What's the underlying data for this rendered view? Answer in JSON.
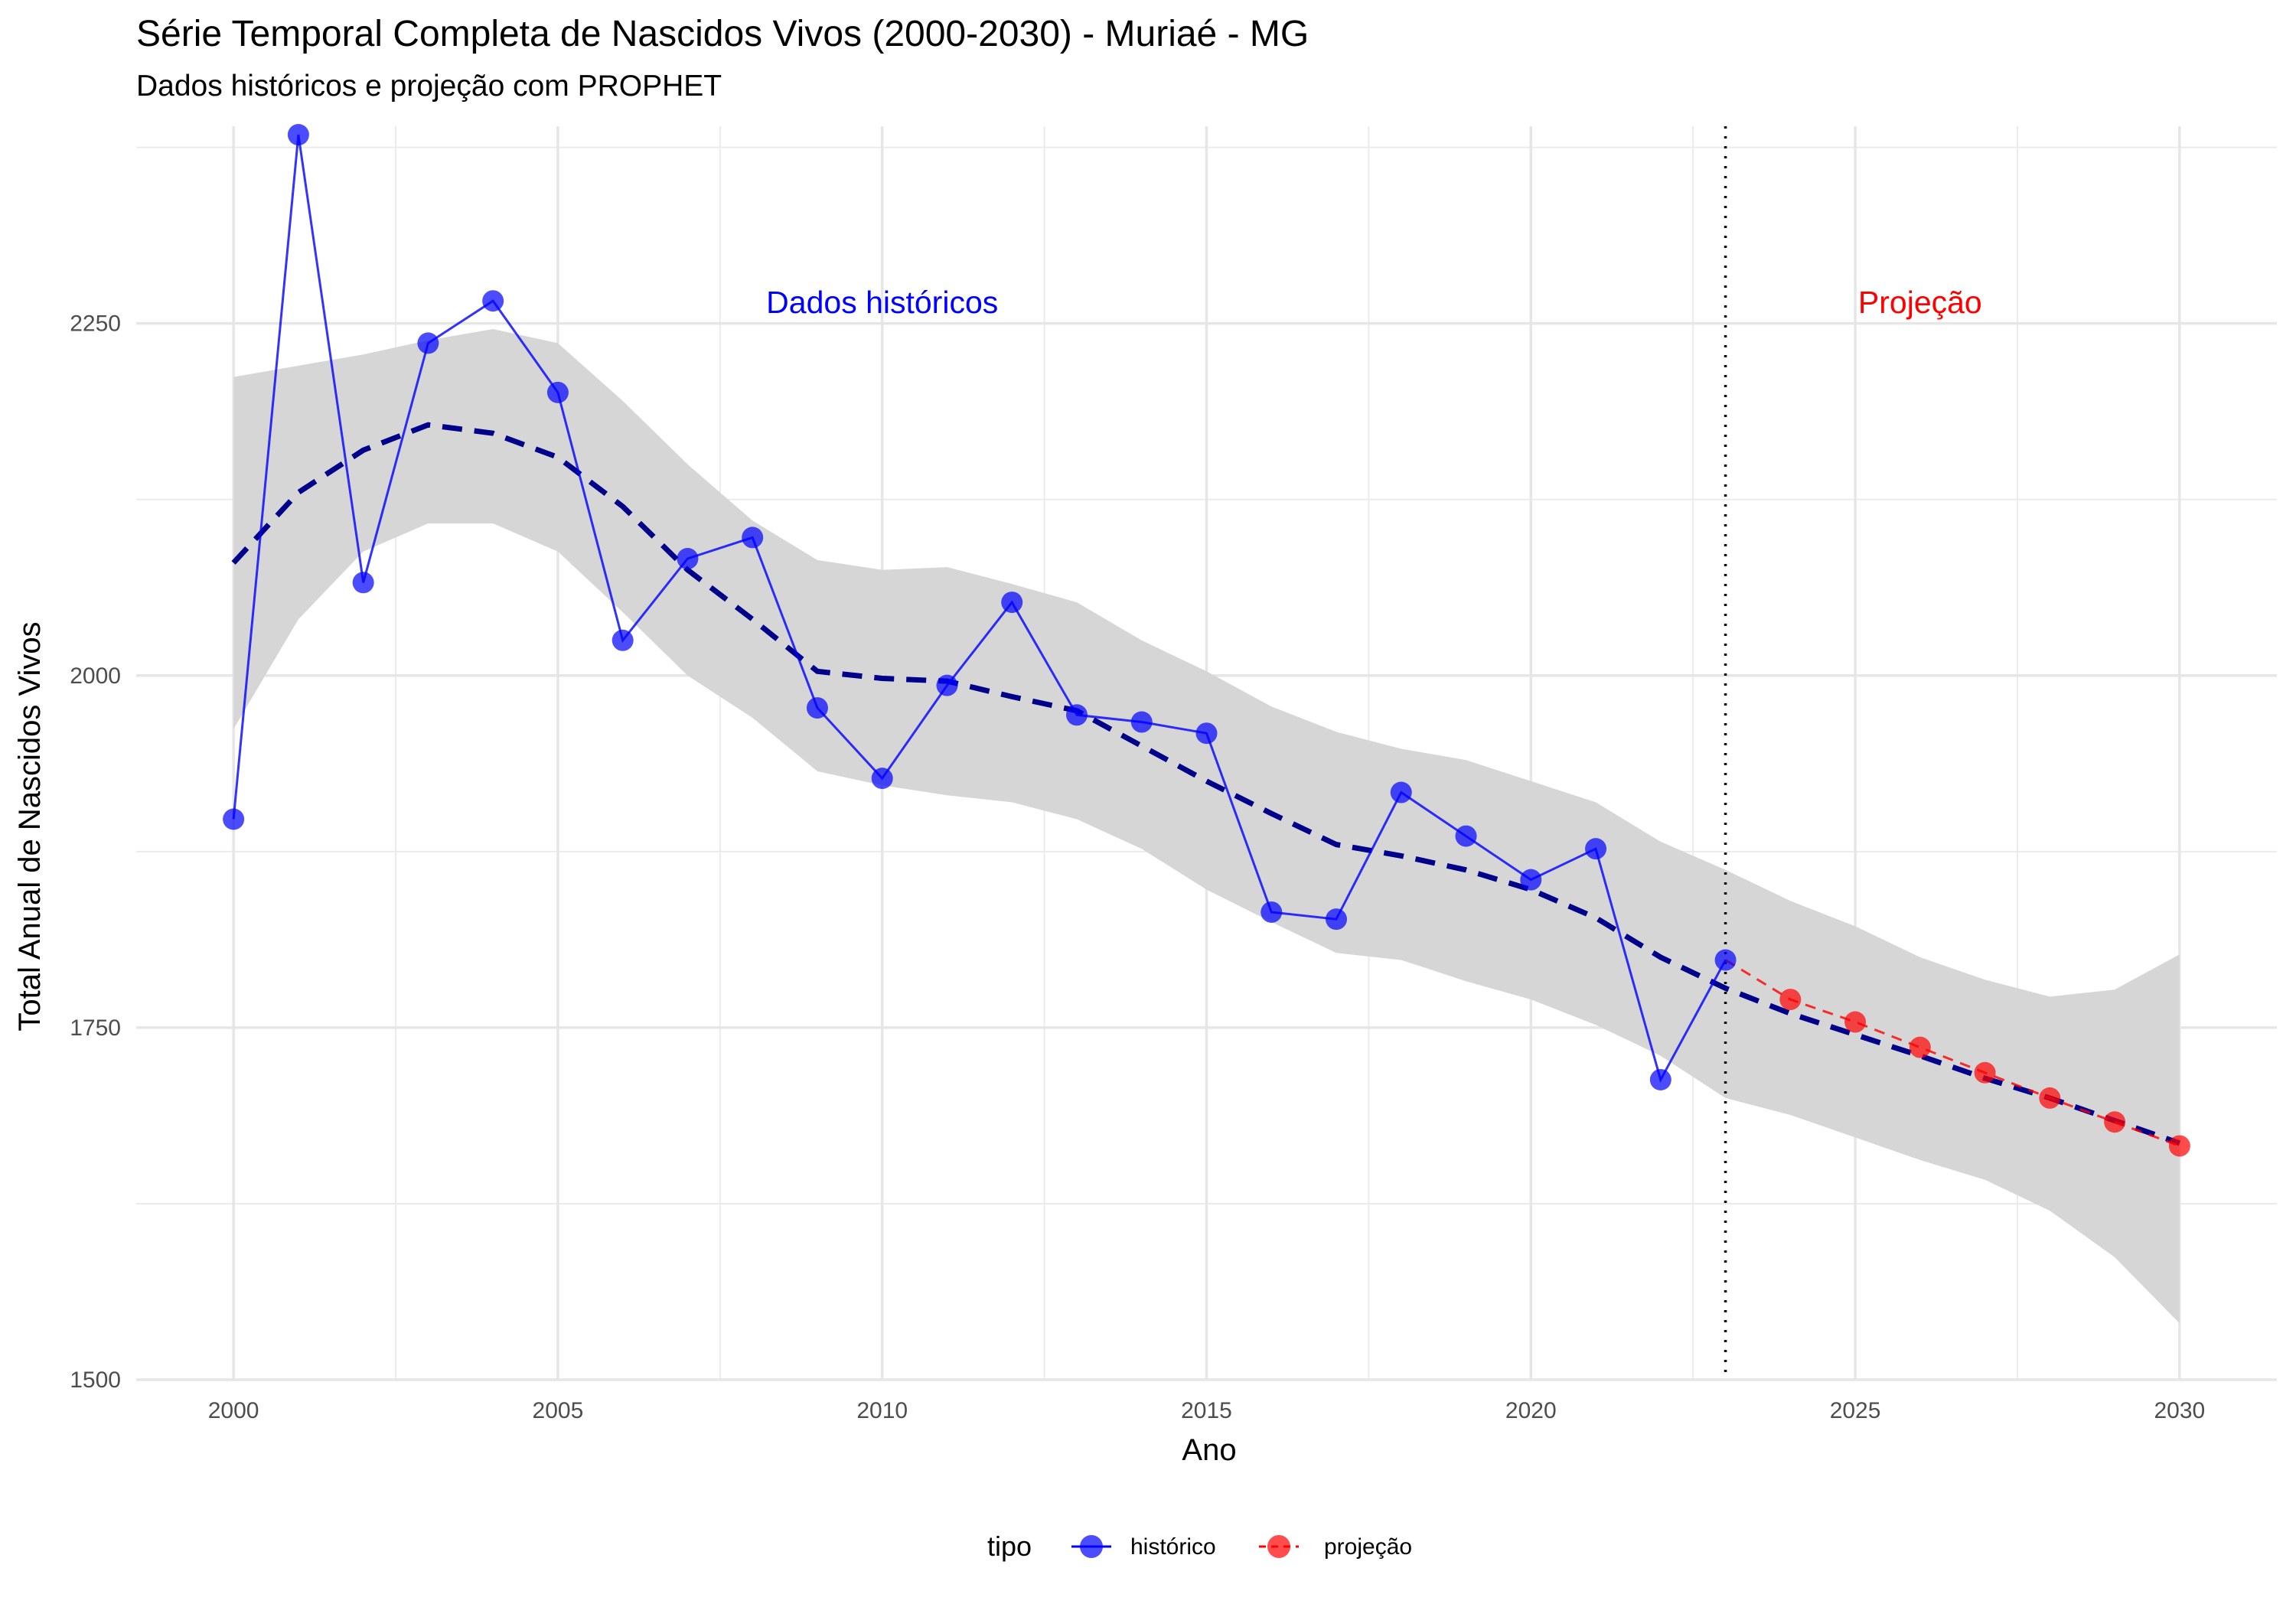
{
  "chart_data": {
    "type": "line",
    "title": "Série Temporal Completa de Nascidos Vivos (2000-2030) -  Muriaé - MG",
    "subtitle": "Dados históricos e projeção com PROPHET",
    "xlabel": "Ano",
    "ylabel": "Total Anual de Nascidos Vivos",
    "xlim": [
      1998.5,
      2031.5
    ],
    "ylim": [
      1500,
      2390
    ],
    "x_ticks": [
      2000,
      2005,
      2010,
      2015,
      2020,
      2025,
      2030
    ],
    "y_ticks": [
      1500,
      1750,
      2000,
      2250
    ],
    "grid": true,
    "legend": {
      "title": "tipo",
      "position": "bottom",
      "entries": [
        "histórico",
        "projeção"
      ]
    },
    "divider_x": 2023,
    "annotations": [
      {
        "text": "Dados históricos",
        "x": 2010,
        "y": 2265,
        "color": "#0000ff"
      },
      {
        "text": "Projeção",
        "x": 2026,
        "y": 2265,
        "color": "#ff0000"
      }
    ],
    "series": [
      {
        "name": "histórico",
        "color": "#0000ff",
        "x": [
          2000,
          2001,
          2002,
          2003,
          2004,
          2005,
          2006,
          2007,
          2008,
          2009,
          2010,
          2011,
          2012,
          2013,
          2014,
          2015,
          2016,
          2017,
          2018,
          2019,
          2020,
          2021,
          2022,
          2023
        ],
        "y": [
          1898,
          2384,
          2066,
          2236,
          2266,
          2201,
          2025,
          2083,
          2098,
          1977,
          1927,
          1993,
          2052,
          1972,
          1967,
          1959,
          1832,
          1827,
          1917,
          1886,
          1855,
          1877,
          1713,
          1798
        ]
      },
      {
        "name": "projeção",
        "color": "#ff0000",
        "x": [
          2024,
          2025,
          2026,
          2027,
          2028,
          2029,
          2030
        ],
        "y": [
          1770,
          1754,
          1736,
          1718,
          1700,
          1683,
          1666
        ]
      }
    ],
    "trend": {
      "color": "#00008b",
      "x": [
        2000,
        2001,
        2002,
        2003,
        2004,
        2005,
        2006,
        2007,
        2008,
        2009,
        2010,
        2011,
        2012,
        2013,
        2014,
        2015,
        2016,
        2017,
        2018,
        2019,
        2020,
        2021,
        2022,
        2023,
        2024,
        2025,
        2026,
        2027,
        2028,
        2029,
        2030
      ],
      "y": [
        2080,
        2130,
        2160,
        2178,
        2172,
        2155,
        2120,
        2075,
        2040,
        2003,
        1998,
        1996,
        1985,
        1975,
        1950,
        1925,
        1902,
        1880,
        1872,
        1862,
        1848,
        1828,
        1800,
        1778,
        1760,
        1745,
        1730,
        1714,
        1700,
        1684,
        1668
      ]
    },
    "band": {
      "color": "#d6d6d6",
      "x": [
        2000,
        2001,
        2002,
        2003,
        2004,
        2005,
        2006,
        2007,
        2008,
        2009,
        2010,
        2011,
        2012,
        2013,
        2014,
        2015,
        2016,
        2017,
        2018,
        2019,
        2020,
        2021,
        2022,
        2023,
        2024,
        2025,
        2026,
        2027,
        2028,
        2029,
        2030
      ],
      "upper": [
        2212,
        2220,
        2228,
        2238,
        2246,
        2236,
        2195,
        2150,
        2110,
        2082,
        2075,
        2077,
        2065,
        2052,
        2025,
        2003,
        1978,
        1960,
        1948,
        1940,
        1925,
        1910,
        1882,
        1862,
        1840,
        1822,
        1800,
        1784,
        1772,
        1777,
        1802
      ],
      "lower": [
        1962,
        2040,
        2088,
        2108,
        2108,
        2088,
        2045,
        2000,
        1970,
        1932,
        1922,
        1915,
        1910,
        1898,
        1877,
        1848,
        1825,
        1803,
        1798,
        1783,
        1770,
        1752,
        1730,
        1700,
        1688,
        1672,
        1656,
        1642,
        1620,
        1587,
        1540
      ]
    }
  }
}
